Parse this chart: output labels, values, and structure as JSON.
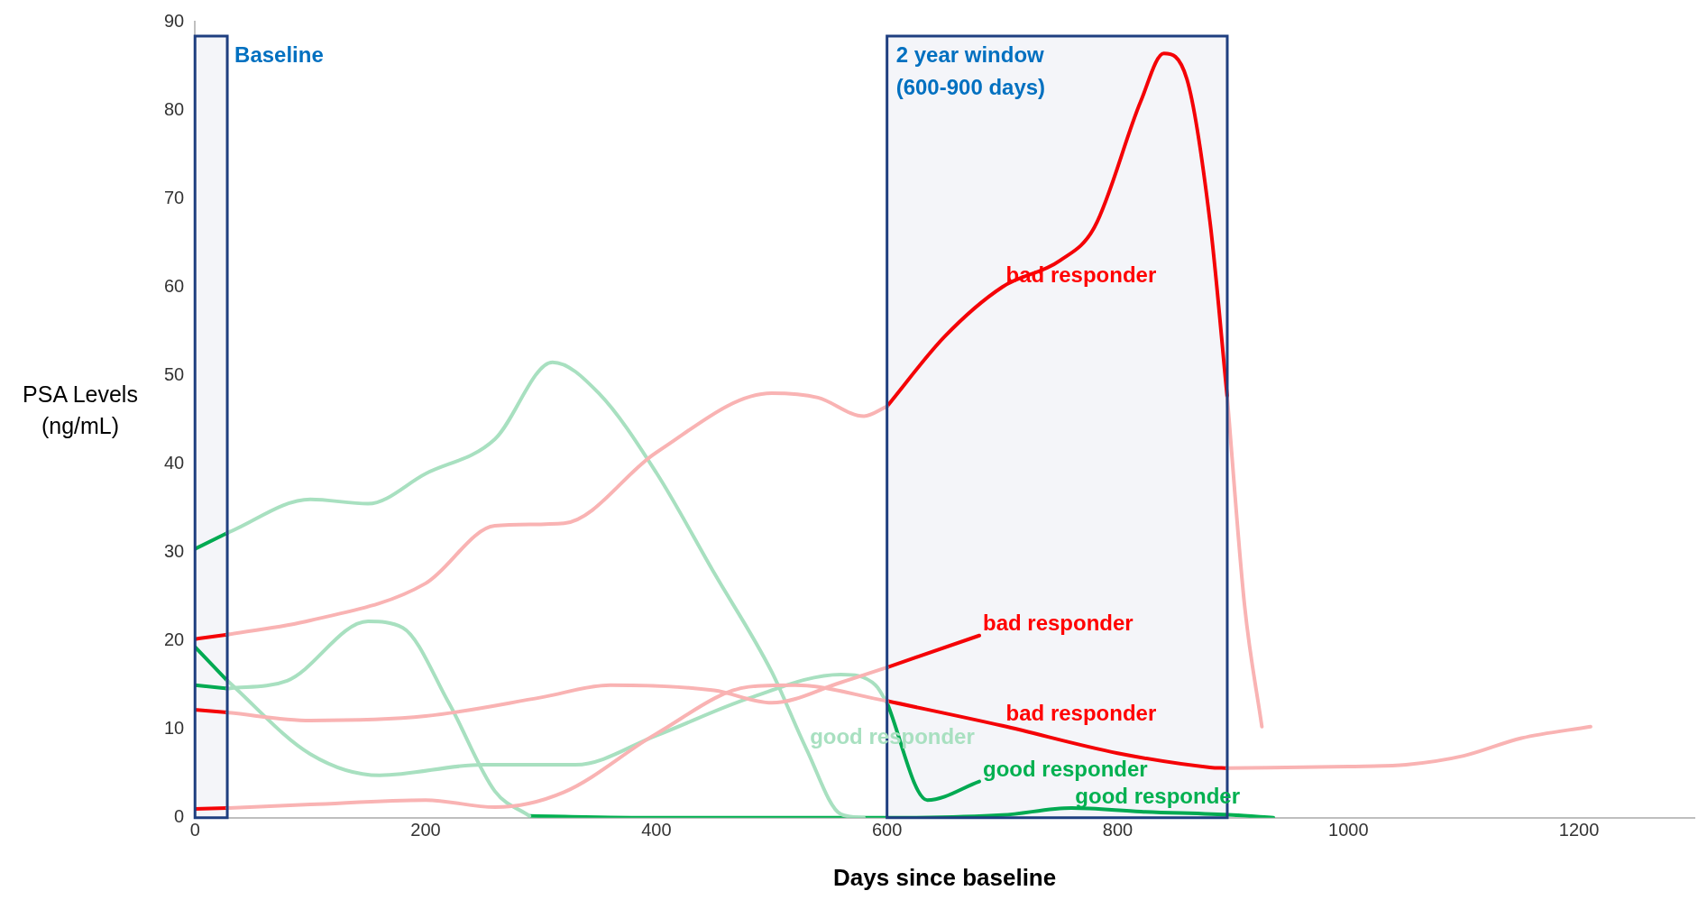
{
  "chart_data": {
    "type": "line",
    "xlabel": "Days since baseline",
    "ylabel": "PSA Levels (ng/mL)",
    "xlim": [
      0,
      1300
    ],
    "xticks": [
      0,
      200,
      400,
      600,
      800,
      1000,
      1200
    ],
    "ylim": [
      0,
      90
    ],
    "yticks": [
      0,
      10,
      20,
      30,
      40,
      50,
      60,
      70,
      80,
      90
    ],
    "grid": false,
    "legend": false,
    "marker": "none",
    "line_style": "solid",
    "series": [
      {
        "color": "#f9b3b3",
        "x": [
          28,
          100,
          200,
          260,
          320,
          400,
          500,
          540,
          580,
          600
        ],
        "values": [
          20.7,
          22.3,
          26.5,
          33,
          33.3,
          41.3,
          48,
          47.5,
          45.4,
          46.5
        ]
      },
      {
        "color": "#f9b3b3",
        "x": [
          895,
          910,
          925
        ],
        "values": [
          47.5,
          24,
          10.3
        ]
      },
      {
        "color": "#f9b3b3",
        "x": [
          28,
          100,
          200,
          300,
          360,
          450,
          500,
          560,
          600
        ],
        "values": [
          11.9,
          11,
          11.5,
          13.6,
          15,
          14.4,
          13,
          15.3,
          17
        ]
      },
      {
        "color": "#f9b3b3",
        "x": [
          28,
          100,
          200,
          260,
          320,
          400,
          480,
          520,
          600
        ],
        "values": [
          1.1,
          1.5,
          2,
          1.2,
          2.9,
          9.5,
          14.8,
          15,
          13.2
        ]
      },
      {
        "color": "#f9b3b3",
        "x": [
          895,
          1000,
          1050,
          1100,
          1150,
          1210
        ],
        "values": [
          5.6,
          5.8,
          6,
          7,
          9,
          10.3
        ]
      },
      {
        "color": "#a8e0c0",
        "x": [
          28,
          100,
          160,
          250,
          330,
          400,
          480,
          560,
          590,
          600
        ],
        "values": [
          15.5,
          7.2,
          4.8,
          6,
          6,
          9.3,
          13.5,
          16.2,
          15,
          13
        ]
      },
      {
        "color": "#a8e0c0",
        "x": [
          28,
          80,
          150,
          180,
          220,
          260,
          290
        ],
        "values": [
          14.6,
          15.5,
          22.2,
          21.5,
          13,
          3,
          0.2
        ]
      },
      {
        "color": "#a8e0c0",
        "x": [
          28,
          100,
          150,
          200,
          260,
          310,
          350,
          400,
          450,
          500,
          530,
          560,
          580
        ],
        "values": [
          32.2,
          36,
          35.5,
          38.9,
          42.8,
          51.5,
          48,
          39,
          27.7,
          16.5,
          7.8,
          0.4,
          0
        ]
      },
      {
        "color": "#ff0000",
        "x": [
          0,
          28
        ],
        "values": [
          20.2,
          20.7
        ]
      },
      {
        "color": "#ff0000",
        "x": [
          600,
          650,
          700,
          750,
          780,
          820,
          840,
          860,
          880,
          895
        ],
        "values": [
          46.5,
          54.4,
          60,
          63,
          66.8,
          81,
          86.4,
          83.5,
          67.4,
          47.5
        ]
      },
      {
        "color": "#ff0000",
        "x": [
          0,
          28
        ],
        "values": [
          12.2,
          11.9
        ]
      },
      {
        "color": "#ff0000",
        "x": [
          600,
          680
        ],
        "values": [
          17,
          20.6
        ]
      },
      {
        "color": "#ff0000",
        "x": [
          0,
          28
        ],
        "values": [
          1,
          1.1
        ]
      },
      {
        "color": "#ff0000",
        "x": [
          600,
          700,
          800,
          880,
          895
        ],
        "values": [
          13.2,
          10.4,
          7.3,
          5.7,
          5.6
        ]
      },
      {
        "color": "#00b050",
        "x": [
          0,
          28
        ],
        "values": [
          19.3,
          15.5
        ]
      },
      {
        "color": "#00b050",
        "x": [
          600,
          635,
          680
        ],
        "values": [
          13,
          2,
          4.1
        ]
      },
      {
        "color": "#00b050",
        "x": [
          0,
          28
        ],
        "values": [
          15,
          14.6
        ]
      },
      {
        "color": "#00b050",
        "x": [
          290,
          400,
          600,
          700,
          760,
          820,
          900,
          935
        ],
        "values": [
          0.2,
          0,
          0,
          0.3,
          1.1,
          0.7,
          0.3,
          0
        ]
      },
      {
        "color": "#00b050",
        "x": [
          0,
          28
        ],
        "values": [
          30.4,
          32.2
        ]
      }
    ],
    "bands": [
      {
        "axis": "x",
        "from": 0,
        "to": 28,
        "label": "Baseline",
        "color": "#1f3f80"
      },
      {
        "axis": "x",
        "from": 600,
        "to": 895,
        "label": "2 year window\n(600-900 days)",
        "color": "#1f3f80"
      }
    ],
    "annotations": [
      {
        "text": "bad responder",
        "x": 700,
        "y": 60
      },
      {
        "text": "bad responder",
        "x": 680,
        "y": 20.6
      },
      {
        "text": "bad responder",
        "x": 700,
        "y": 10.4
      },
      {
        "text": "good responder",
        "x": 530,
        "y": 7.8
      },
      {
        "text": "good responder",
        "x": 680,
        "y": 4.1
      },
      {
        "text": "good responder",
        "x": 760,
        "y": 1.1
      }
    ]
  }
}
